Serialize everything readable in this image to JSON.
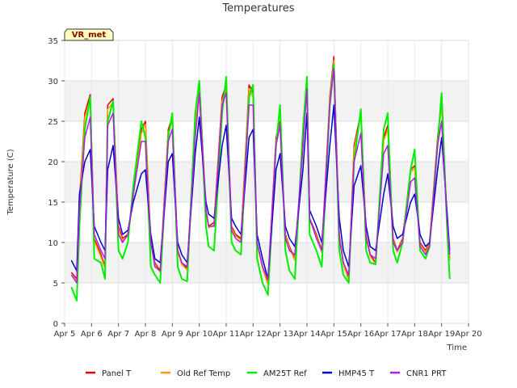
{
  "chart_data": {
    "type": "line",
    "title": "Temperatures",
    "xlabel": "Time",
    "ylabel": "Temperature (C)",
    "annotation": "VR_met",
    "xlim": [
      5,
      20
    ],
    "ylim": [
      0,
      35
    ],
    "x_ticks": [
      {
        "value": 5,
        "label": "Apr 5"
      },
      {
        "value": 6,
        "label": "Apr 6"
      },
      {
        "value": 7,
        "label": "Apr 7"
      },
      {
        "value": 8,
        "label": "Apr 8"
      },
      {
        "value": 9,
        "label": "Apr 9"
      },
      {
        "value": 10,
        "label": "Apr 10"
      },
      {
        "value": 11,
        "label": "Apr 11"
      },
      {
        "value": 12,
        "label": "Apr 12"
      },
      {
        "value": 13,
        "label": "Apr 13"
      },
      {
        "value": 14,
        "label": "Apr 14"
      },
      {
        "value": 15,
        "label": "Apr 15"
      },
      {
        "value": 16,
        "label": "Apr 16"
      },
      {
        "value": 17,
        "label": "Apr 17"
      },
      {
        "value": 18,
        "label": "Apr 18"
      },
      {
        "value": 19,
        "label": "Apr 19"
      },
      {
        "value": 20,
        "label": "Apr 20"
      }
    ],
    "y_ticks": [
      0,
      5,
      10,
      15,
      20,
      25,
      30,
      35
    ],
    "grid": true,
    "legend_position": "bottom",
    "series": [
      {
        "name": "Panel T",
        "color": "#dd0000",
        "x": [
          5.25,
          5.45,
          5.55,
          5.75,
          5.95,
          6.1,
          6.35,
          6.5,
          6.6,
          6.8,
          7.0,
          7.15,
          7.35,
          7.55,
          7.85,
          8.0,
          8.2,
          8.35,
          8.55,
          8.85,
          9.0,
          9.2,
          9.35,
          9.55,
          9.85,
          10.0,
          10.25,
          10.35,
          10.55,
          10.85,
          11.0,
          11.2,
          11.35,
          11.55,
          11.85,
          12.0,
          12.15,
          12.35,
          12.55,
          12.85,
          13.0,
          13.2,
          13.35,
          13.55,
          13.85,
          14.0,
          14.1,
          14.35,
          14.55,
          14.85,
          15.0,
          15.2,
          15.35,
          15.55,
          15.75,
          16.0,
          16.2,
          16.35,
          16.55,
          16.85,
          17.0,
          17.2,
          17.35,
          17.55,
          17.85,
          18.0,
          18.2,
          18.4,
          18.55,
          18.85,
          19.0,
          19.2,
          19.3
        ],
        "y": [
          6.3,
          5.5,
          15.0,
          26.0,
          28.3,
          10.5,
          8.5,
          7.0,
          27.0,
          27.8,
          12.0,
          10.5,
          11.0,
          16.0,
          24.0,
          25.0,
          10.0,
          7.5,
          6.5,
          24.0,
          25.5,
          9.0,
          7.5,
          6.8,
          25.0,
          30.0,
          14.0,
          12.0,
          12.5,
          28.0,
          29.5,
          12.0,
          11.0,
          10.5,
          29.5,
          28.5,
          10.0,
          7.0,
          5.0,
          23.0,
          25.0,
          11.0,
          9.5,
          8.0,
          22.0,
          30.5,
          13.0,
          11.0,
          9.0,
          28.0,
          33.0,
          11.0,
          7.5,
          5.5,
          22.0,
          26.0,
          11.0,
          8.5,
          7.5,
          23.0,
          24.5,
          10.5,
          9.0,
          10.5,
          19.0,
          19.5,
          10.0,
          9.0,
          10.0,
          23.0,
          27.5,
          13.0,
          8.0
        ]
      },
      {
        "name": "Old Ref Temp",
        "color": "#ff9900",
        "x": [
          5.25,
          5.45,
          5.55,
          5.75,
          5.95,
          6.1,
          6.35,
          6.5,
          6.6,
          6.8,
          7.0,
          7.15,
          7.35,
          7.55,
          7.85,
          8.0,
          8.2,
          8.35,
          8.55,
          8.85,
          9.0,
          9.2,
          9.35,
          9.55,
          9.85,
          10.0,
          10.25,
          10.35,
          10.55,
          10.85,
          11.0,
          11.2,
          11.35,
          11.55,
          11.85,
          12.0,
          12.15,
          12.35,
          12.55,
          12.85,
          13.0,
          13.2,
          13.35,
          13.55,
          13.85,
          14.0,
          14.1,
          14.35,
          14.55,
          14.85,
          15.0,
          15.2,
          15.35,
          15.55,
          15.75,
          16.0,
          16.2,
          16.35,
          16.55,
          16.85,
          17.0,
          17.2,
          17.35,
          17.55,
          17.85,
          18.0,
          18.2,
          18.4,
          18.55,
          18.85,
          19.0,
          19.2,
          19.3
        ],
        "y": [
          6.0,
          5.2,
          14.5,
          25.5,
          27.8,
          10.2,
          8.2,
          6.8,
          26.5,
          27.3,
          11.7,
          10.2,
          10.8,
          15.7,
          23.5,
          24.6,
          9.8,
          7.3,
          6.3,
          23.6,
          25.0,
          8.8,
          7.3,
          6.6,
          24.6,
          29.5,
          13.7,
          11.8,
          12.2,
          27.5,
          29.0,
          11.8,
          10.8,
          10.3,
          29.0,
          28.0,
          9.8,
          6.8,
          4.8,
          22.6,
          24.6,
          10.8,
          9.3,
          7.8,
          21.6,
          30.0,
          12.8,
          10.8,
          8.8,
          27.5,
          32.5,
          10.8,
          7.3,
          5.3,
          21.6,
          25.6,
          10.8,
          8.3,
          7.3,
          22.6,
          24.0,
          10.3,
          8.8,
          10.3,
          18.7,
          19.2,
          9.8,
          8.8,
          9.8,
          22.6,
          27.0,
          12.8,
          7.8
        ]
      },
      {
        "name": "AM25T Ref",
        "color": "#00ee00",
        "x": [
          5.25,
          5.45,
          5.55,
          5.75,
          5.95,
          6.1,
          6.35,
          6.5,
          6.6,
          6.8,
          7.0,
          7.15,
          7.35,
          7.55,
          7.85,
          8.0,
          8.2,
          8.35,
          8.55,
          8.85,
          9.0,
          9.2,
          9.35,
          9.55,
          9.85,
          10.0,
          10.25,
          10.35,
          10.55,
          10.85,
          11.0,
          11.2,
          11.35,
          11.55,
          11.85,
          12.0,
          12.15,
          12.35,
          12.55,
          12.85,
          13.0,
          13.2,
          13.35,
          13.55,
          13.85,
          14.0,
          14.1,
          14.35,
          14.55,
          14.85,
          15.0,
          15.2,
          15.35,
          15.55,
          15.75,
          16.0,
          16.2,
          16.35,
          16.55,
          16.85,
          17.0,
          17.2,
          17.35,
          17.55,
          17.85,
          18.0,
          18.2,
          18.4,
          18.55,
          18.85,
          19.0,
          19.2,
          19.3
        ],
        "y": [
          4.5,
          2.8,
          12.0,
          24.0,
          28.0,
          8.0,
          7.5,
          5.5,
          25.0,
          27.5,
          9.0,
          8.0,
          10.0,
          17.0,
          25.0,
          23.0,
          7.0,
          6.0,
          5.0,
          23.0,
          26.0,
          7.0,
          5.5,
          5.2,
          26.0,
          30.0,
          12.0,
          9.5,
          9.0,
          26.0,
          30.5,
          10.0,
          9.0,
          8.5,
          28.0,
          29.5,
          8.0,
          5.0,
          3.5,
          22.0,
          27.0,
          9.0,
          6.5,
          5.5,
          24.0,
          30.5,
          11.0,
          9.0,
          7.0,
          27.0,
          32.0,
          9.0,
          6.0,
          5.0,
          20.0,
          26.5,
          9.0,
          7.5,
          7.3,
          24.0,
          26.0,
          9.0,
          7.5,
          10.0,
          19.0,
          21.5,
          9.0,
          8.0,
          9.5,
          22.0,
          28.5,
          12.0,
          5.5
        ]
      },
      {
        "name": "HMP45 T",
        "color": "#0000cc",
        "x": [
          5.25,
          5.45,
          5.55,
          5.75,
          5.95,
          6.1,
          6.35,
          6.5,
          6.6,
          6.8,
          7.0,
          7.15,
          7.35,
          7.55,
          7.85,
          8.0,
          8.2,
          8.35,
          8.55,
          8.85,
          9.0,
          9.2,
          9.35,
          9.55,
          9.85,
          10.0,
          10.25,
          10.35,
          10.55,
          10.85,
          11.0,
          11.2,
          11.35,
          11.55,
          11.85,
          12.0,
          12.15,
          12.35,
          12.55,
          12.85,
          13.0,
          13.2,
          13.35,
          13.55,
          13.85,
          14.0,
          14.1,
          14.35,
          14.55,
          14.85,
          15.0,
          15.2,
          15.35,
          15.55,
          15.75,
          16.0,
          16.2,
          16.35,
          16.55,
          16.85,
          17.0,
          17.2,
          17.35,
          17.55,
          17.85,
          18.0,
          18.2,
          18.4,
          18.55,
          18.85,
          19.0,
          19.2,
          19.3
        ],
        "y": [
          7.8,
          6.5,
          16.0,
          20.0,
          21.5,
          12.0,
          10.0,
          9.0,
          19.0,
          22.0,
          13.0,
          11.0,
          11.5,
          15.0,
          18.5,
          19.0,
          11.0,
          8.0,
          7.5,
          20.0,
          21.0,
          10.0,
          8.5,
          7.5,
          21.0,
          25.5,
          15.0,
          13.5,
          13.0,
          22.0,
          24.5,
          13.0,
          12.0,
          11.0,
          23.0,
          24.0,
          11.0,
          8.0,
          5.5,
          19.0,
          21.0,
          12.0,
          10.5,
          9.5,
          19.0,
          26.0,
          14.0,
          12.0,
          10.0,
          22.0,
          27.0,
          13.0,
          9.0,
          7.0,
          17.0,
          19.5,
          12.0,
          9.5,
          9.0,
          16.0,
          18.5,
          12.0,
          10.5,
          11.0,
          15.0,
          16.0,
          11.0,
          9.5,
          10.0,
          19.0,
          23.0,
          14.0,
          9.0
        ]
      },
      {
        "name": "CNR1 PRT",
        "color": "#aa22dd",
        "x": [
          5.25,
          5.45,
          5.55,
          5.75,
          5.95,
          6.1,
          6.35,
          6.5,
          6.6,
          6.8,
          7.0,
          7.15,
          7.35,
          7.55,
          7.85,
          8.0,
          8.2,
          8.35,
          8.55,
          8.85,
          9.0,
          9.2,
          9.35,
          9.55,
          9.85,
          10.0,
          10.25,
          10.35,
          10.55,
          10.85,
          11.0,
          11.2,
          11.35,
          11.55,
          11.85,
          12.0,
          12.15,
          12.35,
          12.55,
          12.85,
          13.0,
          13.2,
          13.35,
          13.55,
          13.85,
          14.0,
          14.1,
          14.35,
          14.55,
          14.85,
          15.0,
          15.2,
          15.35,
          15.55,
          15.75,
          16.0,
          16.2,
          16.35,
          16.55,
          16.85,
          17.0,
          17.2,
          17.35,
          17.55,
          17.85,
          18.0,
          18.2,
          18.4,
          18.55,
          18.85,
          19.0,
          19.2,
          19.3
        ],
        "y": [
          6.0,
          5.0,
          14.0,
          23.0,
          25.5,
          11.0,
          9.0,
          8.0,
          24.5,
          26.0,
          11.0,
          10.0,
          11.0,
          16.0,
          22.5,
          22.5,
          10.0,
          7.0,
          6.5,
          22.5,
          24.0,
          9.0,
          7.5,
          7.0,
          23.0,
          28.5,
          14.0,
          12.0,
          12.0,
          27.0,
          28.5,
          11.5,
          10.5,
          10.0,
          27.0,
          27.0,
          10.0,
          7.0,
          5.5,
          22.0,
          24.5,
          10.5,
          9.0,
          8.5,
          22.0,
          29.0,
          13.0,
          10.5,
          9.0,
          27.0,
          31.5,
          10.5,
          7.5,
          6.0,
          20.0,
          23.5,
          10.5,
          8.5,
          8.0,
          21.0,
          22.0,
          10.0,
          9.0,
          10.0,
          17.5,
          18.0,
          9.5,
          8.5,
          9.5,
          22.0,
          25.0,
          13.0,
          8.5
        ]
      }
    ]
  }
}
